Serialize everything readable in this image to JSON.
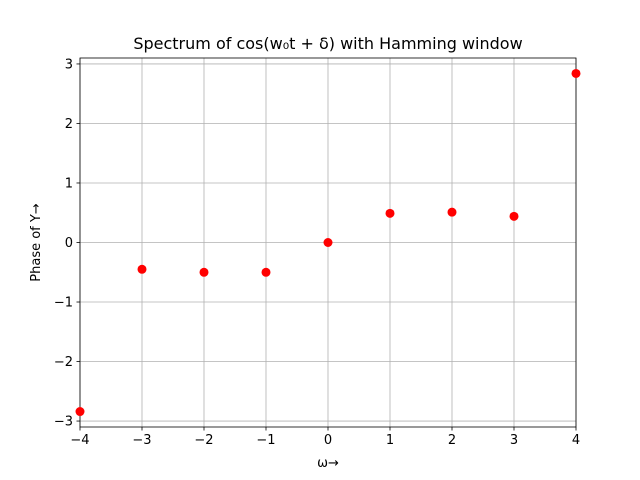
{
  "chart_data": {
    "type": "scatter",
    "title": "Spectrum of cos(w₀t + δ) with Hamming window",
    "xlabel": "ω→",
    "ylabel": "Phase of Y→",
    "xlim": [
      -4,
      4
    ],
    "ylim": [
      -3.1,
      3.1
    ],
    "xticks": [
      -4,
      -3,
      -2,
      -1,
      0,
      1,
      2,
      3,
      4
    ],
    "yticks": [
      -3,
      -2,
      -1,
      0,
      1,
      2,
      3
    ],
    "grid": true,
    "marker_color": "#ff0000",
    "series": [
      {
        "x": [
          -4,
          -3,
          -2,
          -1,
          0,
          1,
          2,
          3,
          4
        ],
        "y": [
          -2.84,
          -0.45,
          -0.5,
          -0.5,
          0.0,
          0.49,
          0.51,
          0.44,
          2.84
        ]
      }
    ]
  }
}
